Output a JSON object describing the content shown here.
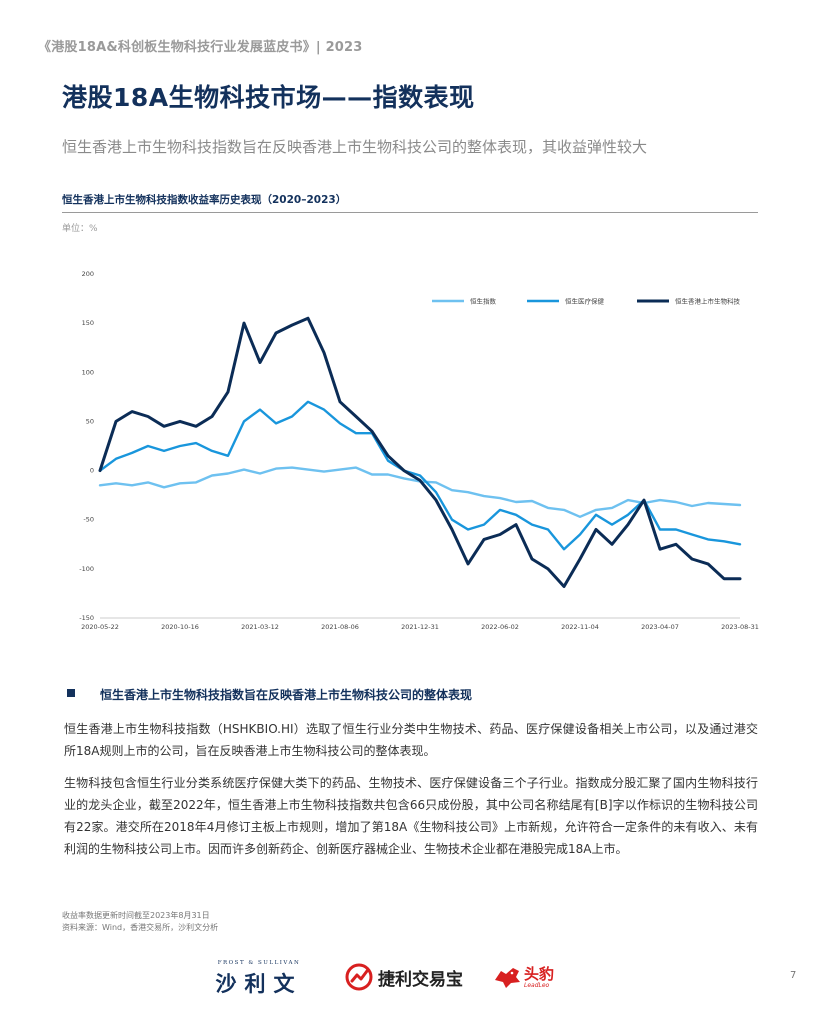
{
  "header": {
    "report_title": "《港股18A&科创板生物科技行业发展蓝皮书》| 2023"
  },
  "page_title": "港股18A生物科技市场——指数表现",
  "subtitle": "恒生香港上市生物科技指数旨在反映香港上市生物科技公司的整体表现，其收益弹性较大",
  "chart_section": {
    "title": "恒生香港上市生物科技指数收益率历史表现（2020–2023）",
    "unit": "单位：%"
  },
  "chart_data": {
    "type": "line",
    "title": "",
    "xlabel": "",
    "ylabel": "",
    "ylim": [
      -150,
      200
    ],
    "yticks": [
      "200",
      "150",
      "100",
      "50",
      "0",
      "-50",
      "-100",
      "-150"
    ],
    "xticks": [
      "2020-05-22",
      "2020-10-16",
      "2021-03-12",
      "2021-08-06",
      "2021-12-31",
      "2022-06-02",
      "2022-11-04",
      "2023-04-07",
      "2023-08-31"
    ],
    "legend_position": "top-right",
    "grid": false,
    "x": [
      0,
      0.2,
      0.4,
      0.6,
      0.8,
      1,
      1.2,
      1.4,
      1.6,
      1.8,
      2,
      2.2,
      2.4,
      2.6,
      2.8,
      3,
      3.2,
      3.4,
      3.6,
      3.8,
      4,
      4.2,
      4.4,
      4.6,
      4.8,
      5,
      5.2,
      5.4,
      5.6,
      5.8,
      6,
      6.2,
      6.4,
      6.6,
      6.8,
      7,
      7.2,
      7.4,
      7.6,
      7.8,
      8
    ],
    "series": [
      {
        "name": "恒生指数",
        "color": "#6ec1f0",
        "values": [
          -15,
          -13,
          -15,
          -12,
          -17,
          -13,
          -12,
          -5,
          -3,
          1,
          -3,
          2,
          3,
          1,
          -1,
          1,
          3,
          -4,
          -4,
          -8,
          -11,
          -12,
          -20,
          -22,
          -26,
          -28,
          -32,
          -31,
          -38,
          -40,
          -47,
          -40,
          -38,
          -30,
          -33,
          -30,
          -32,
          -36,
          -33,
          -34,
          -35
        ]
      },
      {
        "name": "恒生医疗保健",
        "color": "#1996dc",
        "values": [
          0,
          12,
          18,
          25,
          20,
          25,
          28,
          20,
          15,
          50,
          62,
          48,
          55,
          70,
          62,
          48,
          38,
          38,
          10,
          0,
          -5,
          -22,
          -50,
          -60,
          -55,
          -40,
          -45,
          -55,
          -60,
          -80,
          -65,
          -45,
          -55,
          -45,
          -30,
          -60,
          -60,
          -65,
          -70,
          -72,
          -75
        ]
      },
      {
        "name": "恒生香港上市生物科技",
        "color": "#0b2c56",
        "values": [
          0,
          50,
          60,
          55,
          45,
          50,
          45,
          55,
          80,
          150,
          110,
          140,
          148,
          155,
          120,
          70,
          55,
          40,
          15,
          0,
          -10,
          -30,
          -60,
          -95,
          -70,
          -65,
          -55,
          -90,
          -100,
          -118,
          -90,
          -60,
          -75,
          -55,
          -30,
          -80,
          -75,
          -90,
          -95,
          -110,
          -110
        ]
      }
    ]
  },
  "section": {
    "heading": "恒生香港上市生物科技指数旨在反映香港上市生物科技公司的整体表现"
  },
  "paragraphs": [
    "恒生香港上市生物科技指数（HSHKBIO.HI）选取了恒生行业分类中生物技术、药品、医疗保健设备相关上市公司，以及通过港交所18A规则上市的公司，旨在反映香港上市生物科技公司的整体表现。",
    "生物科技包含恒生行业分类系统医疗保健大类下的药品、生物技术、医疗保健设备三个子行业。指数成分股汇聚了国内生物科技行业的龙头企业，截至2022年，恒生香港上市生物科技指数共包含66只成份股，其中公司名称结尾有[B]字以作标识的生物科技公司有22家。港交所在2018年4月修订主板上市规则，增加了第18A《生物科技公司》上市新规，允许符合一定条件的未有收入、未有利润的生物科技公司上市。因而许多创新药企、创新医疗器械企业、生物技术企业都在港股完成18A上市。"
  ],
  "footnotes": {
    "update_note": "收益率数据更新时间截至2023年8月31日",
    "source": "资料来源：Wind，香港交易所，沙利文分析"
  },
  "logos": {
    "frost_top": "FROST & SULLIVAN",
    "frost_main": "沙利文",
    "jieli": "捷利交易宝",
    "toubao": "头豹",
    "toubao_sub": "LeadLeo"
  },
  "page_number": "7"
}
